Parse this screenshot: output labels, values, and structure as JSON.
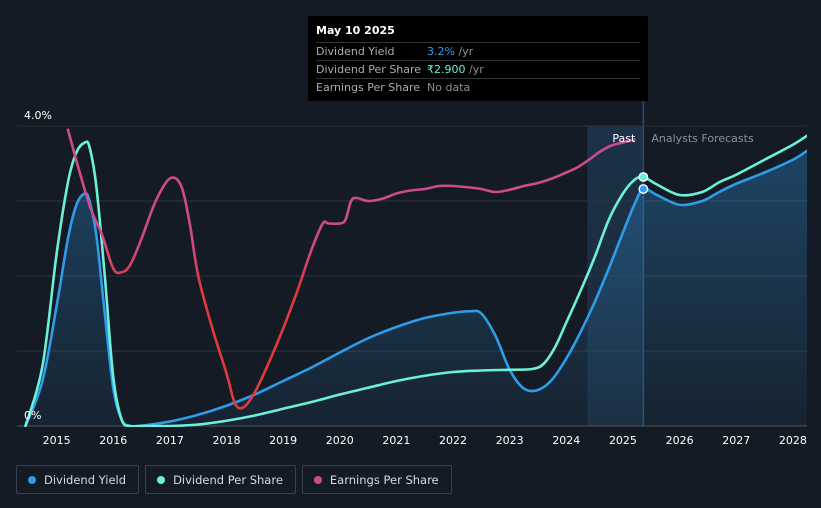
{
  "chart_data": {
    "type": "line",
    "y_axis": {
      "ticks": [
        "4.0%",
        "0%"
      ],
      "min": 0,
      "max": 4.0,
      "unit": "%"
    },
    "x_axis": {
      "ticks": [
        "2015",
        "2016",
        "2017",
        "2018",
        "2019",
        "2020",
        "2021",
        "2022",
        "2023",
        "2024",
        "2025",
        "2026",
        "2027",
        "2028"
      ],
      "min": 2014.3,
      "max": 2028.25
    },
    "grid": true,
    "regions": {
      "past_label": "Past",
      "forecast_label": "Analysts Forecasts",
      "past_start": 2024.37,
      "now": 2025.36
    },
    "colors": {
      "background": "#151b24",
      "past_band": "#1d3349",
      "grid": "#2c333c",
      "dividend_yield": "#2f9ceb",
      "dividend_per_share": "#6cf0d7",
      "earnings_per_share": "#cc4b8e",
      "earnings_per_share_low": "#e0393e"
    },
    "series": [
      {
        "name": "Dividend Yield",
        "color": "#2f9ceb",
        "area": true,
        "x": [
          2014.45,
          2014.75,
          2015.0,
          2015.2,
          2015.35,
          2015.5,
          2015.58,
          2015.7,
          2015.85,
          2016.0,
          2016.15,
          2016.3,
          2016.45,
          2017.0,
          2017.5,
          2018.0,
          2018.5,
          2019.0,
          2019.5,
          2020.0,
          2020.5,
          2021.0,
          2021.5,
          2022.0,
          2022.3,
          2022.5,
          2022.75,
          2023.0,
          2023.25,
          2023.5,
          2023.75,
          2024.0,
          2024.25,
          2024.5,
          2024.75,
          2025.0,
          2025.2,
          2025.36,
          2025.6,
          2026.0,
          2026.4,
          2026.7,
          2027.0,
          2027.5,
          2028.0,
          2028.25
        ],
        "y": [
          0.0,
          0.6,
          1.6,
          2.5,
          2.95,
          3.1,
          3.0,
          2.55,
          1.5,
          0.5,
          0.08,
          0.0,
          0.0,
          0.06,
          0.15,
          0.27,
          0.42,
          0.6,
          0.78,
          0.98,
          1.17,
          1.32,
          1.44,
          1.51,
          1.53,
          1.5,
          1.2,
          0.75,
          0.5,
          0.48,
          0.62,
          0.9,
          1.25,
          1.65,
          2.1,
          2.58,
          2.95,
          3.16,
          3.08,
          2.95,
          3.0,
          3.12,
          3.23,
          3.38,
          3.55,
          3.67
        ]
      },
      {
        "name": "Dividend Per Share",
        "color": "#6cf0d7",
        "x": [
          2014.45,
          2014.75,
          2015.0,
          2015.2,
          2015.35,
          2015.5,
          2015.58,
          2015.7,
          2015.85,
          2016.0,
          2016.15,
          2016.3,
          2016.45,
          2017.0,
          2017.5,
          2018.0,
          2018.5,
          2019.0,
          2019.5,
          2020.0,
          2020.5,
          2021.0,
          2021.5,
          2022.0,
          2022.5,
          2023.0,
          2023.4,
          2023.6,
          2023.8,
          2024.0,
          2024.25,
          2024.5,
          2024.75,
          2025.0,
          2025.2,
          2025.36,
          2025.6,
          2026.0,
          2026.4,
          2026.7,
          2027.0,
          2027.5,
          2028.0,
          2028.25
        ],
        "y": [
          0.0,
          0.8,
          2.3,
          3.25,
          3.65,
          3.78,
          3.72,
          3.2,
          2.0,
          0.65,
          0.08,
          0.0,
          0.0,
          0.0,
          0.02,
          0.07,
          0.14,
          0.23,
          0.32,
          0.42,
          0.51,
          0.6,
          0.67,
          0.72,
          0.74,
          0.75,
          0.76,
          0.83,
          1.05,
          1.38,
          1.8,
          2.25,
          2.75,
          3.1,
          3.28,
          3.32,
          3.22,
          3.08,
          3.12,
          3.25,
          3.35,
          3.55,
          3.75,
          3.87
        ]
      },
      {
        "name": "Earnings Per Share",
        "color": "#cc4b8e",
        "x": [
          2015.2,
          2015.4,
          2015.6,
          2015.8,
          2016.0,
          2016.15,
          2016.3,
          2016.5,
          2016.75,
          2017.0,
          2017.2,
          2017.35,
          2017.5,
          2017.75,
          2018.0,
          2018.15,
          2018.3,
          2018.5,
          2018.75,
          2019.0,
          2019.25,
          2019.5,
          2019.7,
          2019.8,
          2020.0,
          2020.1,
          2020.2,
          2020.3,
          2020.5,
          2020.75,
          2021.0,
          2021.25,
          2021.5,
          2021.75,
          2022.0,
          2022.3,
          2022.5,
          2022.75,
          2023.0,
          2023.25,
          2023.5,
          2023.75,
          2024.0,
          2024.2,
          2024.4,
          2024.6,
          2024.8,
          2025.0,
          2025.2
        ],
        "y": [
          3.95,
          3.4,
          2.9,
          2.55,
          2.1,
          2.05,
          2.15,
          2.5,
          3.0,
          3.3,
          3.2,
          2.7,
          2.0,
          1.3,
          0.7,
          0.3,
          0.25,
          0.45,
          0.85,
          1.3,
          1.8,
          2.35,
          2.7,
          2.7,
          2.7,
          2.75,
          3.0,
          3.04,
          3.0,
          3.03,
          3.1,
          3.14,
          3.16,
          3.2,
          3.2,
          3.18,
          3.16,
          3.12,
          3.15,
          3.2,
          3.24,
          3.3,
          3.38,
          3.45,
          3.55,
          3.66,
          3.74,
          3.78,
          3.82
        ]
      }
    ],
    "markers": [
      {
        "series": "Dividend Yield",
        "x": 2025.36,
        "y": 3.16
      },
      {
        "series": "Dividend Per Share",
        "x": 2025.36,
        "y": 3.32
      }
    ]
  },
  "tooltip": {
    "date": "May 10 2025",
    "rows": [
      {
        "label": "Dividend Yield",
        "value": "3.2%",
        "suffix": " /yr"
      },
      {
        "label": "Dividend Per Share",
        "value": "₹2.900",
        "suffix": " /yr"
      },
      {
        "label": "Earnings Per Share",
        "value": "No data",
        "suffix": ""
      }
    ]
  },
  "legend": [
    {
      "label": "Dividend Yield",
      "color": "#2f9ceb"
    },
    {
      "label": "Dividend Per Share",
      "color": "#6cf0d7"
    },
    {
      "label": "Earnings Per Share",
      "color": "#cc4b8e"
    }
  ]
}
